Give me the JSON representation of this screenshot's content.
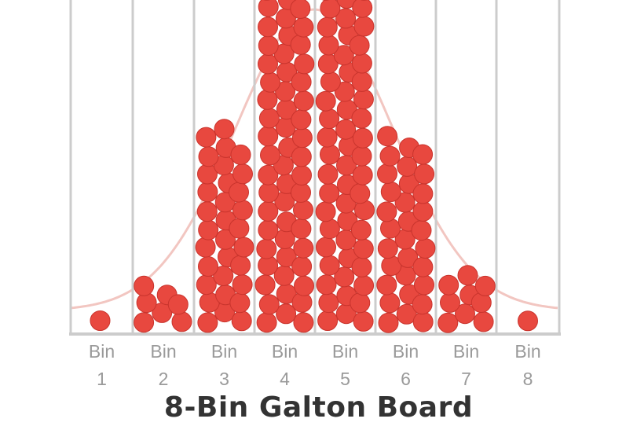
{
  "title": "8-Bin Galton Board",
  "colors": {
    "ball": "#e8483f",
    "ball_stroke": "#c9342d",
    "wall": "#cccccc",
    "curve": "#f2c6c1",
    "label": "#9a9a9a",
    "title": "#333333"
  },
  "bins": [
    {
      "word": "Bin",
      "number": "1",
      "balls": 1
    },
    {
      "word": "Bin",
      "number": "2",
      "balls": 7
    },
    {
      "word": "Bin",
      "number": "3",
      "balls": 32
    },
    {
      "word": "Bin",
      "number": "4",
      "balls": 58
    },
    {
      "word": "Bin",
      "number": "5",
      "balls": 58
    },
    {
      "word": "Bin",
      "number": "6",
      "balls": 31
    },
    {
      "word": "Bin",
      "number": "7",
      "balls": 9
    },
    {
      "word": "Bin",
      "number": "8",
      "balls": 1
    }
  ]
}
